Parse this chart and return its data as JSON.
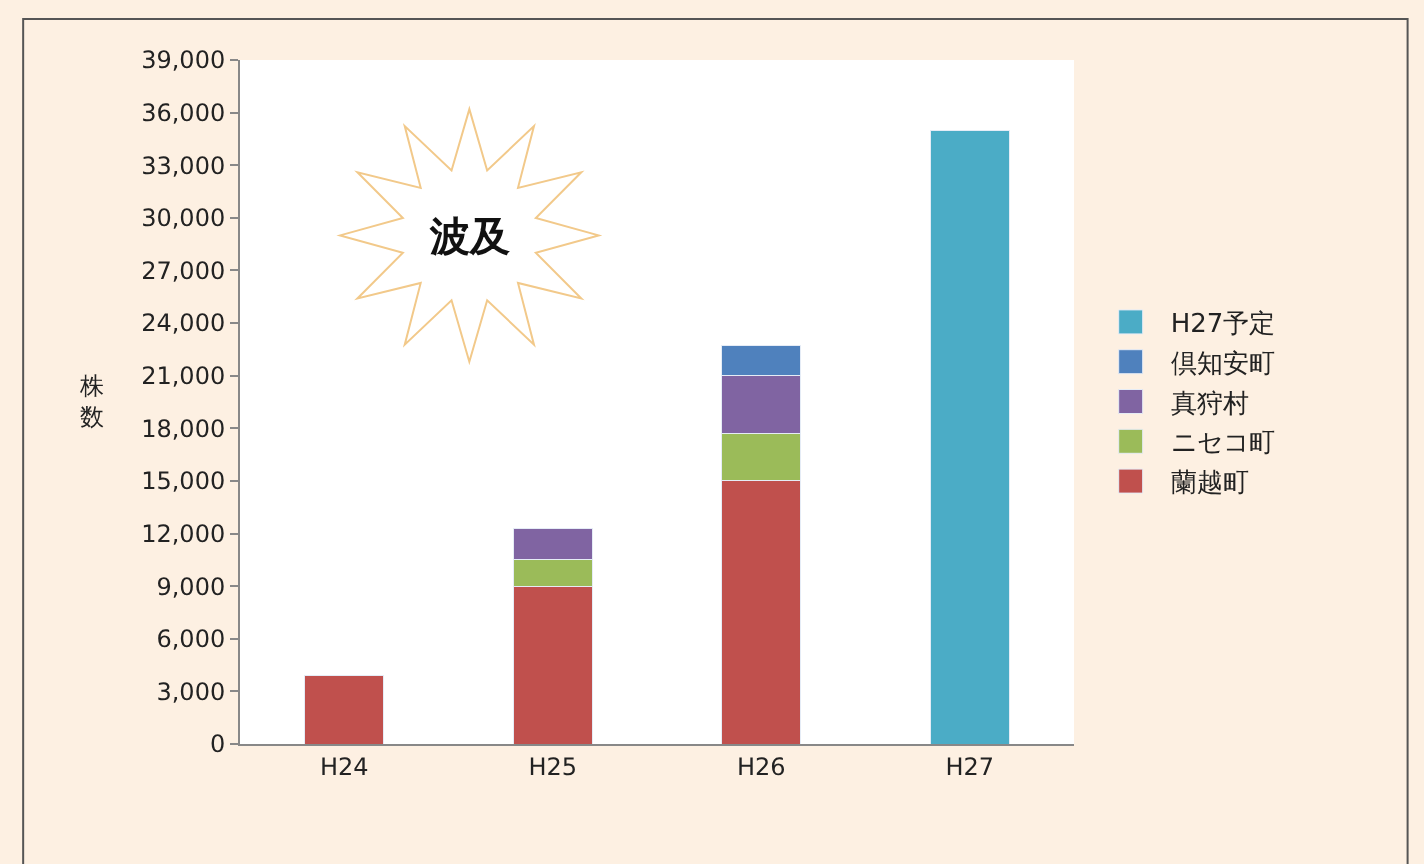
{
  "chart_data": {
    "type": "bar",
    "stacked": true,
    "ylabel": "株数",
    "categories": [
      "H24",
      "H25",
      "H26",
      "H27"
    ],
    "series": [
      {
        "name": "蘭越町",
        "color": "#c0504d",
        "values": [
          3900,
          9000,
          15000,
          null
        ]
      },
      {
        "name": "ニセコ町",
        "color": "#9bbb59",
        "values": [
          null,
          1500,
          2700,
          null
        ]
      },
      {
        "name": "真狩村",
        "color": "#8064a2",
        "values": [
          null,
          1800,
          3300,
          null
        ]
      },
      {
        "name": "倶知安町",
        "color": "#4f81bd",
        "values": [
          null,
          null,
          1700,
          null
        ]
      },
      {
        "name": "H27予定",
        "color": "#4bacc6",
        "values": [
          null,
          null,
          null,
          35000
        ]
      }
    ],
    "ylim": [
      0,
      39000
    ],
    "yticks": [
      {
        "value": 0,
        "label": "0"
      },
      {
        "value": 3000,
        "label": "3,000"
      },
      {
        "value": 6000,
        "label": "6,000"
      },
      {
        "value": 9000,
        "label": "9,000"
      },
      {
        "value": 12000,
        "label": "12,000"
      },
      {
        "value": 15000,
        "label": "15,000"
      },
      {
        "value": 18000,
        "label": "18,000"
      },
      {
        "value": 21000,
        "label": "21,000"
      },
      {
        "value": 24000,
        "label": "24,000"
      },
      {
        "value": 27000,
        "label": "27,000"
      },
      {
        "value": 30000,
        "label": "30,000"
      },
      {
        "value": 33000,
        "label": "33,000"
      },
      {
        "value": 36000,
        "label": "36,000"
      },
      {
        "value": 39000,
        "label": "39,000"
      }
    ],
    "annotations": [
      "波及"
    ],
    "legend": "right",
    "grid": false
  }
}
